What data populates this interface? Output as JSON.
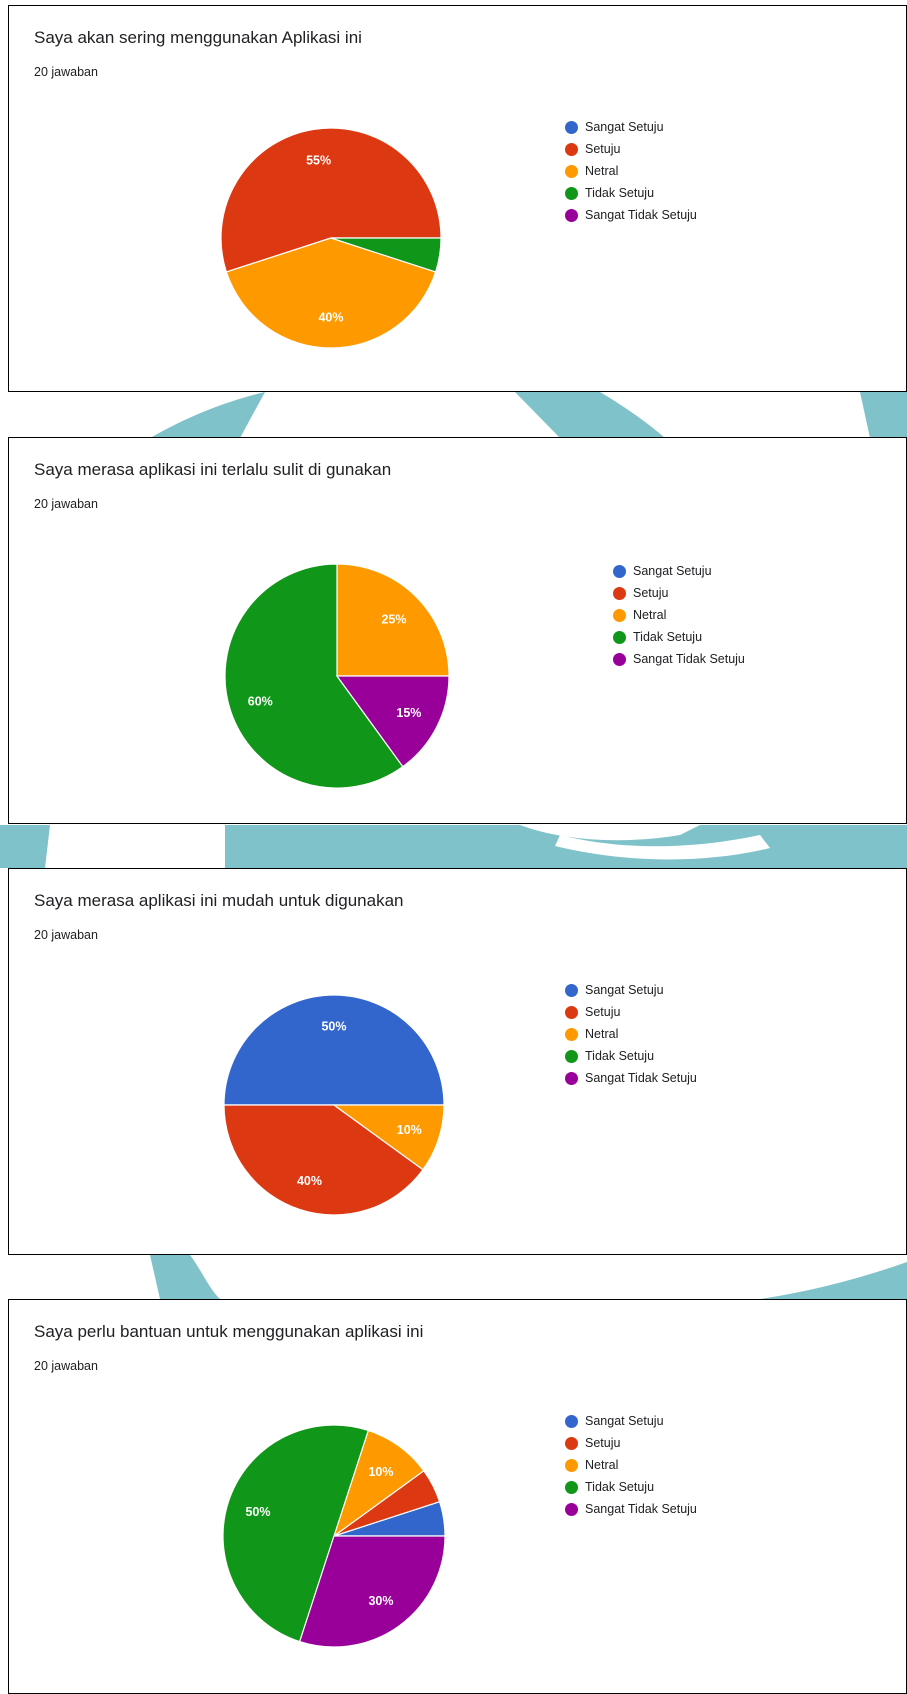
{
  "colors": {
    "Sangat Setuju": "#3366cc",
    "Setuju": "#dc3912",
    "Netral": "#ff9900",
    "Tidak Setuju": "#109618",
    "Sangat Tidak Setuju": "#990099"
  },
  "legend": [
    "Sangat Setuju",
    "Setuju",
    "Netral",
    "Tidak Setuju",
    "Sangat Tidak Setuju"
  ],
  "chart_data": [
    {
      "type": "pie",
      "title": "Saya akan sering menggunakan Aplikasi ini",
      "subtitle": "20 jawaban",
      "categories": [
        "Sangat Setuju",
        "Setuju",
        "Netral",
        "Tidak Setuju",
        "Sangat Tidak Setuju"
      ],
      "values": [
        0,
        55,
        40,
        5,
        0
      ],
      "data_labels": [
        "",
        "55%",
        "40%",
        "",
        ""
      ]
    },
    {
      "type": "pie",
      "title": "Saya merasa aplikasi ini terlalu sulit di gunakan",
      "subtitle": "20 jawaban",
      "categories": [
        "Sangat Setuju",
        "Setuju",
        "Netral",
        "Tidak Setuju",
        "Sangat Tidak Setuju"
      ],
      "values": [
        0,
        0,
        25,
        60,
        15
      ],
      "data_labels": [
        "",
        "",
        "25%",
        "60%",
        "15%"
      ]
    },
    {
      "type": "pie",
      "title": "Saya merasa aplikasi ini mudah untuk digunakan",
      "subtitle": "20 jawaban",
      "categories": [
        "Sangat Setuju",
        "Setuju",
        "Netral",
        "Tidak Setuju",
        "Sangat Tidak Setuju"
      ],
      "values": [
        50,
        40,
        10,
        0,
        0
      ],
      "data_labels": [
        "50%",
        "40%",
        "10%",
        "",
        ""
      ]
    },
    {
      "type": "pie",
      "title": "Saya perlu bantuan untuk menggunakan aplikasi ini",
      "subtitle": "20 jawaban",
      "categories": [
        "Sangat Setuju",
        "Setuju",
        "Netral",
        "Tidak Setuju",
        "Sangat Tidak Setuju"
      ],
      "values": [
        5,
        5,
        10,
        50,
        30
      ],
      "data_labels": [
        "",
        "",
        "10%",
        "50%",
        "30%"
      ]
    }
  ]
}
